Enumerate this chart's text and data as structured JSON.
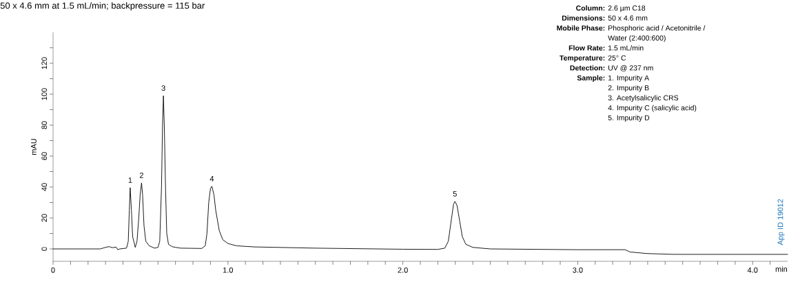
{
  "chart_data": {
    "type": "line",
    "title": "50 x 4.6 mm at 1.5 mL/min; backpressure = 115 bar",
    "xlabel": "min",
    "ylabel": "mAU",
    "x": [
      0,
      0.27,
      0.3,
      0.32,
      0.34,
      0.36,
      0.37,
      0.38,
      0.42,
      0.43,
      0.436,
      0.441,
      0.448,
      0.455,
      0.47,
      0.48,
      0.49,
      0.498,
      0.506,
      0.512,
      0.52,
      0.53,
      0.55,
      0.58,
      0.6,
      0.61,
      0.62,
      0.626,
      0.631,
      0.636,
      0.643,
      0.65,
      0.66,
      0.68,
      0.7,
      0.73,
      0.85,
      0.87,
      0.88,
      0.89,
      0.9,
      0.908,
      0.92,
      0.93,
      0.95,
      0.97,
      1.0,
      1.05,
      1.15,
      1.5,
      2.0,
      2.2,
      2.24,
      2.26,
      2.275,
      2.29,
      2.298,
      2.31,
      2.325,
      2.34,
      2.36,
      2.4,
      2.5,
      3.0,
      3.27,
      3.3,
      3.4,
      3.55,
      4.2
    ],
    "values": [
      0,
      0,
      1,
      1.5,
      0.8,
      1.2,
      -0.5,
      0,
      0.5,
      5,
      25,
      39.6,
      25,
      8,
      1,
      5,
      20,
      35,
      42.7,
      35,
      15,
      5,
      2,
      0.5,
      1,
      5,
      40,
      80,
      99,
      80,
      40,
      10,
      3,
      1.5,
      1,
      0.5,
      0.3,
      2,
      10,
      30,
      39,
      40.5,
      35,
      25,
      12,
      6,
      3.5,
      2,
      1.3,
      0.5,
      -0.2,
      -0.3,
      0.5,
      5,
      17,
      29,
      30.7,
      28,
      18,
      8,
      3,
      1,
      0,
      -0.5,
      -0.5,
      -2,
      -3,
      -3.5,
      -3.5
    ],
    "color": "#000000",
    "line_style": "solid",
    "marker": "none",
    "xlim": [
      0,
      4.2
    ],
    "ylim": [
      -8,
      140
    ],
    "xticks": [
      0,
      {
        "value": 0.1,
        "label": null
      },
      {
        "value": 0.2,
        "label": null
      },
      {
        "value": 0.3,
        "label": null
      },
      {
        "value": 0.4,
        "label": null
      },
      {
        "value": 0.5,
        "label": null
      },
      {
        "value": 0.6,
        "label": null
      },
      {
        "value": 0.7,
        "label": null
      },
      {
        "value": 0.8,
        "label": null
      },
      {
        "value": 0.9,
        "label": null
      },
      {
        "value": 1.0,
        "label": "1.0"
      },
      {
        "value": 1.1,
        "label": null
      },
      {
        "value": 1.2,
        "label": null
      },
      {
        "value": 1.3,
        "label": null
      },
      {
        "value": 1.4,
        "label": null
      },
      {
        "value": 1.5,
        "label": null
      },
      {
        "value": 1.6,
        "label": null
      },
      {
        "value": 1.7,
        "label": null
      },
      {
        "value": 1.8,
        "label": null
      },
      {
        "value": 1.9,
        "label": null
      },
      {
        "value": 2.0,
        "label": "2.0"
      },
      {
        "value": 2.1,
        "label": null
      },
      {
        "value": 2.2,
        "label": null
      },
      {
        "value": 2.3,
        "label": null
      },
      {
        "value": 2.4,
        "label": null
      },
      {
        "value": 2.5,
        "label": null
      },
      {
        "value": 2.6,
        "label": null
      },
      {
        "value": 2.7,
        "label": null
      },
      {
        "value": 2.8,
        "label": null
      },
      {
        "value": 2.9,
        "label": null
      },
      {
        "value": 3.0,
        "label": "3.0"
      },
      {
        "value": 3.1,
        "label": null
      },
      {
        "value": 3.2,
        "label": null
      },
      {
        "value": 3.3,
        "label": null
      },
      {
        "value": 3.4,
        "label": null
      },
      {
        "value": 3.5,
        "label": null
      },
      {
        "value": 3.6,
        "label": null
      },
      {
        "value": 3.7,
        "label": null
      },
      {
        "value": 3.8,
        "label": null
      },
      {
        "value": 3.9,
        "label": null
      },
      {
        "value": 4.0,
        "label": "4.0"
      },
      {
        "value": 4.1,
        "label": null
      }
    ],
    "yticks": [
      0,
      {
        "value": 10,
        "label": null
      },
      20,
      {
        "value": 30,
        "label": null
      },
      40,
      {
        "value": 50,
        "label": null
      },
      60,
      {
        "value": 70,
        "label": null
      },
      80,
      {
        "value": 90,
        "label": null
      },
      100,
      {
        "value": 110,
        "label": null
      },
      120,
      {
        "value": 130,
        "label": null
      }
    ],
    "annotations": [
      {
        "text": "1",
        "x": 0.441,
        "y": 39.6
      },
      {
        "text": "2",
        "x": 0.506,
        "y": 42.7
      },
      {
        "text": "3",
        "x": 0.631,
        "y": 99
      },
      {
        "text": "4",
        "x": 0.908,
        "y": 40.5
      },
      {
        "text": "5",
        "x": 2.298,
        "y": 30.7
      },
      "Column:",
      "2.6 µm C18",
      "Dimensions:",
      "50 x 4.6 mm",
      "Mobile Phase:",
      "Phosphoric acid / Acetonitrile / Water (2:400:600)",
      "Flow Rate:",
      "1.5 mL/min",
      "Temperature:",
      "25° C",
      "Detection:",
      "UV @ 237 nm",
      "Sample:",
      "1. Impurity A",
      "2. Impurity B",
      "3. Acetylsalicylic CRS",
      "4. Impurity C (salicylic acid)",
      "5. Impurity D",
      "App ID 19012"
    ]
  }
}
